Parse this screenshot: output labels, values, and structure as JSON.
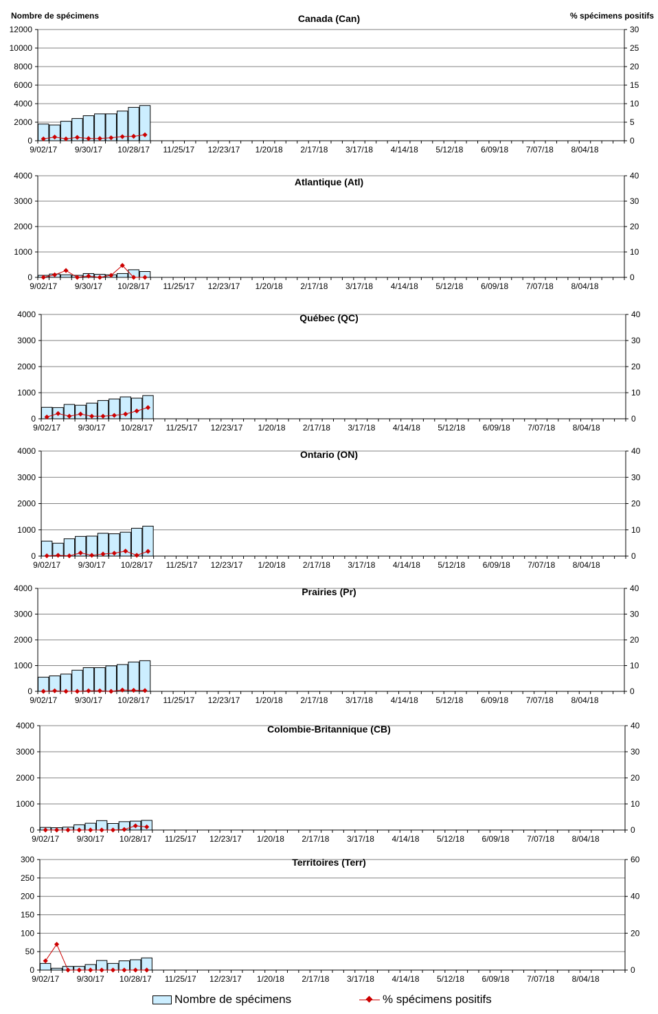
{
  "colors": {
    "bar_fill": "#cceeff",
    "bar_stroke": "#000000",
    "line": "#cc0000",
    "grid": "#808080"
  },
  "left_axis_title": "Nombre de spécimens",
  "right_axis_title": "% spécimens positifs",
  "x_tick_labels": [
    "9/02/17",
    "9/30/17",
    "10/28/17",
    "11/25/17",
    "12/23/17",
    "1/20/18",
    "2/17/18",
    "3/17/18",
    "4/14/18",
    "5/12/18",
    "6/09/18",
    "7/07/18",
    "8/04/18"
  ],
  "legend": {
    "bars": "Nombre de spécimens",
    "line": "% spécimens positifs"
  },
  "chart_data": [
    {
      "type": "bar+line",
      "title": "Canada (Can)",
      "left_ylim": [
        0,
        12000
      ],
      "left_ticks": [
        0,
        2000,
        4000,
        6000,
        8000,
        10000,
        12000
      ],
      "right_ylim": [
        0,
        30
      ],
      "right_ticks": [
        0,
        5,
        10,
        15,
        20,
        25,
        30
      ],
      "bars": [
        1800,
        1700,
        2100,
        2400,
        2700,
        2900,
        2900,
        3200,
        3600,
        3800
      ],
      "line": [
        0.5,
        1.0,
        0.5,
        0.9,
        0.6,
        0.6,
        0.8,
        1.1,
        1.2,
        1.6
      ]
    },
    {
      "type": "bar+line",
      "title": "Atlantique (Atl)",
      "left_ylim": [
        0,
        4000
      ],
      "left_ticks": [
        0,
        1000,
        2000,
        3000,
        4000
      ],
      "right_ylim": [
        0,
        40
      ],
      "right_ticks": [
        0,
        10,
        20,
        30,
        40
      ],
      "bars": [
        80,
        130,
        100,
        80,
        150,
        120,
        100,
        150,
        300,
        230
      ],
      "line": [
        0,
        1,
        2.7,
        0,
        0.5,
        0,
        0.8,
        4.7,
        0,
        0
      ]
    },
    {
      "type": "bar+line",
      "title": "Québec (QC)",
      "left_ylim": [
        0,
        4000
      ],
      "left_ticks": [
        0,
        1000,
        2000,
        3000,
        4000
      ],
      "right_ylim": [
        0,
        40
      ],
      "right_ticks": [
        0,
        10,
        20,
        30,
        40
      ],
      "bars": [
        440,
        430,
        550,
        520,
        600,
        700,
        760,
        840,
        790,
        890
      ],
      "line": [
        0.7,
        2.0,
        1.0,
        1.8,
        1.0,
        1.0,
        1.3,
        1.8,
        3.0,
        4.3
      ]
    },
    {
      "type": "bar+line",
      "title": "Ontario (ON)",
      "left_ylim": [
        0,
        4000
      ],
      "left_ticks": [
        0,
        1000,
        2000,
        3000,
        4000
      ],
      "right_ylim": [
        0,
        40
      ],
      "right_ticks": [
        0,
        10,
        20,
        30,
        40
      ],
      "bars": [
        570,
        490,
        660,
        750,
        760,
        870,
        850,
        910,
        1060,
        1140
      ],
      "line": [
        0.1,
        0.3,
        0.1,
        1.2,
        0.3,
        0.8,
        1.1,
        1.9,
        0.3,
        1.8
      ]
    },
    {
      "type": "bar+line",
      "title": "Prairies (Pr)",
      "left_ylim": [
        0,
        4000
      ],
      "left_ticks": [
        0,
        1000,
        2000,
        3000,
        4000
      ],
      "right_ylim": [
        0,
        40
      ],
      "right_ticks": [
        0,
        10,
        20,
        30,
        40
      ],
      "bars": [
        550,
        600,
        670,
        820,
        920,
        920,
        990,
        1040,
        1140,
        1190
      ],
      "line": [
        0,
        0.2,
        0,
        0,
        0.2,
        0.2,
        0,
        0.5,
        0.4,
        0.3
      ]
    },
    {
      "type": "bar+line",
      "title": "Colombie-Britannique (CB)",
      "left_ylim": [
        0,
        4000
      ],
      "left_ticks": [
        0,
        1000,
        2000,
        3000,
        4000
      ],
      "right_ylim": [
        0,
        40
      ],
      "right_ticks": [
        0,
        10,
        20,
        30,
        40
      ],
      "bars": [
        100,
        90,
        110,
        200,
        260,
        360,
        250,
        320,
        340,
        370
      ],
      "line": [
        0,
        0,
        0,
        0,
        0,
        0,
        0,
        0.2,
        1.6,
        1.2
      ]
    },
    {
      "type": "bar+line",
      "title": "Territoires (Terr)",
      "left_ylim": [
        0,
        300
      ],
      "left_ticks": [
        0,
        50,
        100,
        150,
        200,
        250,
        300
      ],
      "right_ylim": [
        0,
        60
      ],
      "right_ticks": [
        0,
        20,
        40,
        60
      ],
      "bars": [
        18,
        5,
        10,
        10,
        15,
        26,
        18,
        25,
        28,
        33
      ],
      "line": [
        5,
        14,
        0,
        0,
        0,
        0,
        0,
        0,
        0,
        0
      ]
    }
  ]
}
